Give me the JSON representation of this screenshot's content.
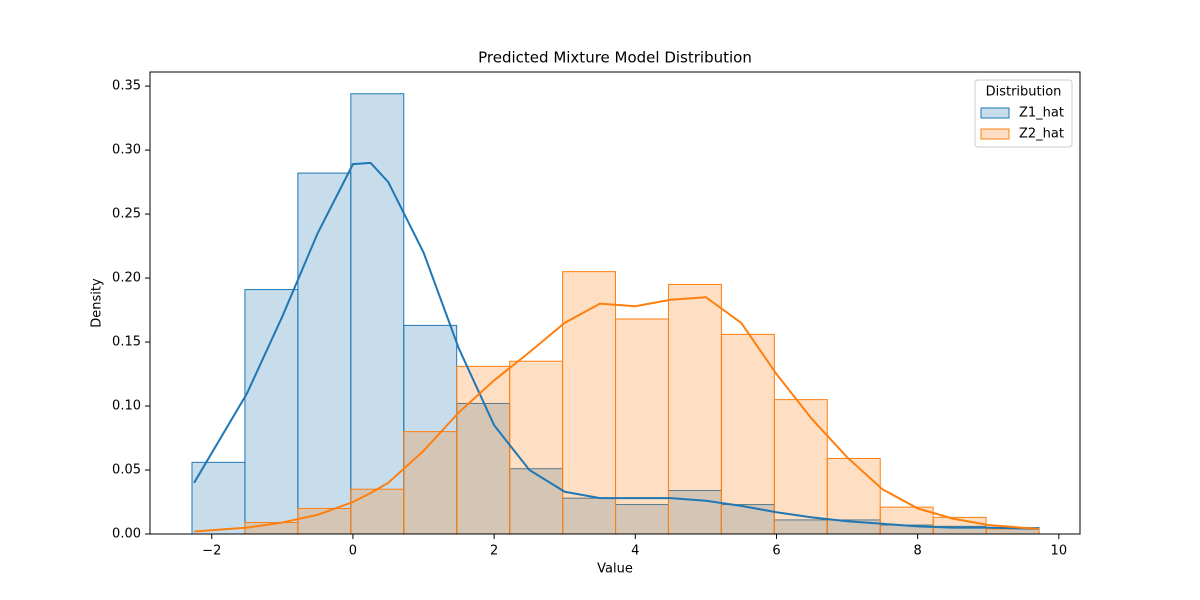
{
  "chart_data": {
    "type": "histogram",
    "title": "Predicted Mixture Model Distribution",
    "x_label": "Value",
    "y_label": "Density",
    "legend_title": "Distribution",
    "legend": "upper right",
    "bins": [
      -2.28,
      -1.53,
      -0.78,
      -0.03,
      0.72,
      1.47,
      2.22,
      2.97,
      3.72,
      4.47,
      5.22,
      5.97,
      6.72,
      7.47,
      8.22,
      8.97,
      9.72
    ],
    "kde_x": [
      -2.25,
      -1.5,
      -1,
      -0.5,
      0,
      0.25,
      0.5,
      1,
      1.5,
      2,
      2.5,
      3,
      3.5,
      4,
      4.5,
      5,
      5.5,
      6,
      6.5,
      7,
      7.5,
      8,
      8.5,
      9,
      9.7
    ],
    "series": [
      {
        "name": "Z1_hat",
        "color": "#1f77b4",
        "values": [
          0.056,
          0.191,
          0.282,
          0.344,
          0.163,
          0.102,
          0.051,
          0.028,
          0.023,
          0.034,
          0.023,
          0.011,
          0.011,
          0.007,
          0.006,
          0.005
        ],
        "kde": [
          0.04,
          0.11,
          0.17,
          0.235,
          0.289,
          0.29,
          0.275,
          0.22,
          0.145,
          0.085,
          0.05,
          0.033,
          0.028,
          0.028,
          0.028,
          0.026,
          0.022,
          0.017,
          0.013,
          0.01,
          0.008,
          0.006,
          0.005,
          0.005,
          0.004
        ]
      },
      {
        "name": "Z2_hat",
        "color": "#ff7f0e",
        "values": [
          0,
          0.009,
          0.02,
          0.035,
          0.08,
          0.131,
          0.135,
          0.205,
          0.168,
          0.195,
          0.156,
          0.105,
          0.059,
          0.021,
          0.013,
          0.004
        ],
        "kde": [
          0.002,
          0.005,
          0.009,
          0.015,
          0.025,
          0.032,
          0.04,
          0.065,
          0.095,
          0.12,
          0.142,
          0.165,
          0.18,
          0.178,
          0.183,
          0.185,
          0.165,
          0.125,
          0.09,
          0.06,
          0.035,
          0.02,
          0.012,
          0.007,
          0.004
        ]
      }
    ],
    "xlim": [
      -2.875,
      10.3
    ],
    "ylim": [
      0,
      0.361
    ],
    "xticks": [
      {
        "value": -2,
        "label": "−2"
      },
      0,
      2,
      4,
      6,
      8,
      10
    ],
    "yticks": [
      {
        "value": 0,
        "label": "0.00"
      },
      {
        "value": 0.05,
        "label": "0.05"
      },
      {
        "value": 0.1,
        "label": "0.10"
      },
      {
        "value": 0.15,
        "label": "0.15"
      },
      {
        "value": 0.2,
        "label": "0.20"
      },
      {
        "value": 0.25,
        "label": "0.25"
      },
      {
        "value": 0.3,
        "label": "0.30"
      },
      {
        "value": 0.35,
        "label": "0.35"
      }
    ],
    "grid": false
  }
}
